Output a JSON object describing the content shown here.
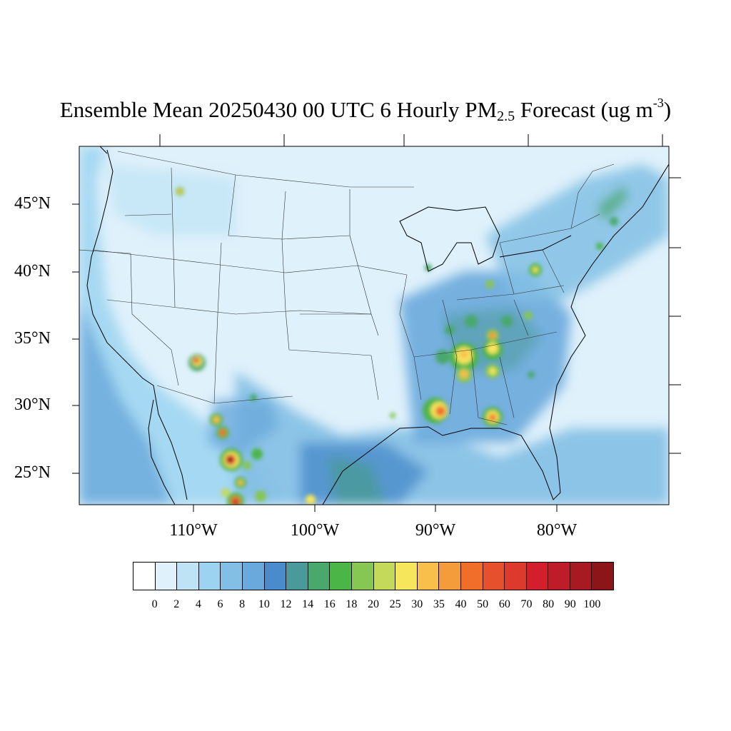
{
  "title": {
    "main": "Ensemble Mean 20250430 00 UTC 6 Hourly PM",
    "subscript": "2.5",
    "after": " Forecast (ug m",
    "superscript": "-3",
    "closing": ")"
  },
  "map": {
    "variable": "PM2.5",
    "units": "ug m-3",
    "lat_labels": [
      "45°N",
      "40°N",
      "35°N",
      "30°N",
      "25°N"
    ],
    "lon_labels": [
      "110°W",
      "100°W",
      "90°W",
      "80°W"
    ],
    "background_color": "#dff1fb",
    "hotspots": [
      {
        "name": "Southern Arizona",
        "value": 60
      },
      {
        "name": "Sierra Madre Occidental north",
        "value": 35
      },
      {
        "name": "Sierra Madre Occidental central",
        "value": 90
      },
      {
        "name": "Sierra Madre Occidental south",
        "value": 70
      },
      {
        "name": "Southern Mississippi",
        "value": 50
      },
      {
        "name": "Southwest Georgia",
        "value": 50
      },
      {
        "name": "Northern Alabama / Tennessee",
        "value": 40
      },
      {
        "name": "Central Alabama",
        "value": 35
      },
      {
        "name": "East Tennessee",
        "value": 30
      },
      {
        "name": "Western Montana",
        "value": 25
      },
      {
        "name": "New York City",
        "value": 20
      },
      {
        "name": "Pennsylvania",
        "value": 25
      },
      {
        "name": "Ohio Valley",
        "value": 20
      },
      {
        "name": "Western North Carolina",
        "value": 20
      },
      {
        "name": "Southern Louisiana",
        "value": 18
      }
    ]
  },
  "colorbar": {
    "colors": [
      "#ffffff",
      "#dff1fb",
      "#bde3f5",
      "#9bd3f0",
      "#83bfe4",
      "#6aa9dc",
      "#4a8ccb",
      "#4a9a9c",
      "#4aa86c",
      "#4bb548",
      "#86c653",
      "#c4d95a",
      "#f6e65c",
      "#f8bf4a",
      "#f49b3b",
      "#f06e29",
      "#e6502d",
      "#dd3a2d",
      "#d21f2b",
      "#be1c28",
      "#a81a22",
      "#8c1519"
    ],
    "labels": [
      "0",
      "2",
      "4",
      "6",
      "8",
      "10",
      "12",
      "14",
      "16",
      "18",
      "20",
      "25",
      "30",
      "35",
      "40",
      "50",
      "60",
      "70",
      "80",
      "90",
      "100"
    ]
  }
}
